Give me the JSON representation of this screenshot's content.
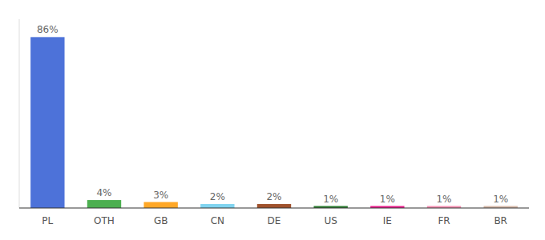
{
  "chart_data": {
    "type": "bar",
    "categories": [
      "PL",
      "OTH",
      "GB",
      "CN",
      "DE",
      "US",
      "IE",
      "FR",
      "BR"
    ],
    "values": [
      86,
      4,
      3,
      2,
      2,
      1,
      1,
      1,
      1
    ],
    "value_labels": [
      "86%",
      "4%",
      "3%",
      "2%",
      "2%",
      "1%",
      "1%",
      "1%",
      "1%"
    ],
    "colors": [
      "#4d72d9",
      "#4caf50",
      "#ffa726",
      "#80d4f0",
      "#a0522d",
      "#2e7d32",
      "#e91e8c",
      "#f48fb1",
      "#d4b8a8"
    ],
    "ylim": [
      0,
      95
    ],
    "data_labels": true,
    "tick_labels": "x",
    "grid": false
  }
}
